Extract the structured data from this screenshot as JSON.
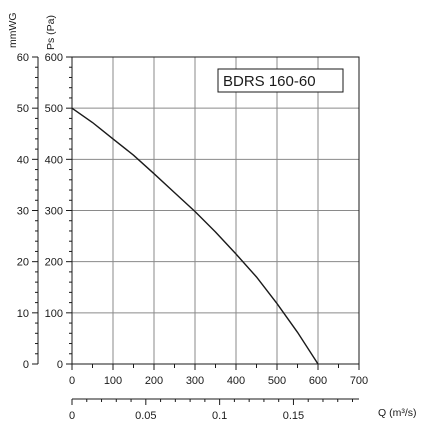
{
  "chart_data": {
    "type": "line",
    "title": "BDRS 160-60",
    "primary_axis": {
      "label": "Ps (Pa)",
      "ylim": [
        0,
        600
      ],
      "ticks": [
        "0",
        "100",
        "200",
        "300",
        "400",
        "500",
        "600"
      ]
    },
    "secondary_axis": {
      "label": "mmWG",
      "ylim": [
        0,
        60
      ],
      "ticks": [
        "0",
        "10",
        "20",
        "30",
        "40",
        "50",
        "60"
      ]
    },
    "x_axis_primary": {
      "label": "",
      "xlim": [
        0,
        700
      ],
      "ticks": [
        "0",
        "100",
        "200",
        "300",
        "400",
        "500",
        "600",
        "700"
      ]
    },
    "x_axis_secondary": {
      "label": "Q (m³/s)",
      "xlim": [
        0,
        0.1944
      ],
      "ticks": [
        "0",
        "0.05",
        "0.1",
        "0.15"
      ]
    },
    "grid": true,
    "series": [
      {
        "x": [
          0,
          50,
          100,
          150,
          200,
          250,
          300,
          350,
          400,
          450,
          500,
          550,
          600
        ],
        "y": [
          500,
          472,
          440,
          408,
          372,
          335,
          298,
          258,
          215,
          170,
          118,
          62,
          0
        ]
      }
    ],
    "colors": {
      "line": "#1a1a1a",
      "grid": "#8a8a8a",
      "box": "#1a1a1a"
    }
  }
}
